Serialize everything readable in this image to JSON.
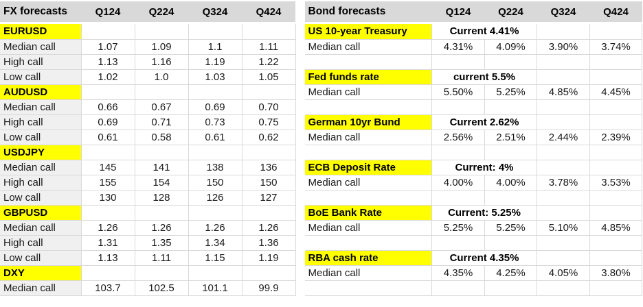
{
  "colors": {
    "highlight": "#ffff00",
    "header_bg": "#d9d9d9",
    "fx_label_bg": "#f0f0f0",
    "gridline": "#d9d9d9",
    "text": "#1a1a1a"
  },
  "fx_table": {
    "title": "FX forecasts",
    "quarters": [
      "Q124",
      "Q224",
      "Q324",
      "Q424"
    ],
    "sections": [
      {
        "name": "EURUSD",
        "rows": [
          {
            "label": "Median call",
            "values": [
              "1.07",
              "1.09",
              "1.1",
              "1.11"
            ]
          },
          {
            "label": "High call",
            "values": [
              "1.13",
              "1.16",
              "1.19",
              "1.22"
            ]
          },
          {
            "label": "Low call",
            "values": [
              "1.02",
              "1.0",
              "1.03",
              "1.05"
            ]
          }
        ]
      },
      {
        "name": "AUDUSD",
        "rows": [
          {
            "label": "Median call",
            "values": [
              "0.66",
              "0.67",
              "0.69",
              "0.70"
            ]
          },
          {
            "label": "High call",
            "values": [
              "0.69",
              "0.71",
              "0.73",
              "0.75"
            ]
          },
          {
            "label": "Low call",
            "values": [
              "0.61",
              "0.58",
              "0.61",
              "0.62"
            ]
          }
        ]
      },
      {
        "name": "USDJPY",
        "rows": [
          {
            "label": "Median call",
            "values": [
              "145",
              "141",
              "138",
              "136"
            ]
          },
          {
            "label": "High call",
            "values": [
              "155",
              "154",
              "150",
              "150"
            ]
          },
          {
            "label": "Low call",
            "values": [
              "130",
              "128",
              "126",
              "127"
            ]
          }
        ]
      },
      {
        "name": "GBPUSD",
        "rows": [
          {
            "label": "Median call",
            "values": [
              "1.26",
              "1.26",
              "1.26",
              "1.26"
            ]
          },
          {
            "label": "High call",
            "values": [
              "1.31",
              "1.35",
              "1.34",
              "1.36"
            ]
          },
          {
            "label": "Low call",
            "values": [
              "1.13",
              "1.11",
              "1.15",
              "1.19"
            ]
          }
        ]
      },
      {
        "name": "DXY",
        "rows": [
          {
            "label": "Median call",
            "values": [
              "103.7",
              "102.5",
              "101.1",
              "99.9"
            ]
          }
        ]
      }
    ]
  },
  "bond_table": {
    "title": "Bond forecasts",
    "quarters": [
      "Q124",
      "Q224",
      "Q324",
      "Q424"
    ],
    "sections": [
      {
        "name": "US 10-year Treasury",
        "current": "Current 4.41%",
        "median_label": "Median call",
        "values": [
          "4.31%",
          "4.09%",
          "3.90%",
          "3.74%"
        ]
      },
      {
        "name": "Fed funds rate",
        "current": "current 5.5%",
        "median_label": "Median call",
        "values": [
          "5.50%",
          "5.25%",
          "4.85%",
          "4.45%"
        ]
      },
      {
        "name": "German 10yr Bund",
        "current": "Current 2.62%",
        "median_label": "Median call",
        "values": [
          "2.56%",
          "2.51%",
          "2.44%",
          "2.39%"
        ]
      },
      {
        "name": "ECB Deposit Rate",
        "current": "Current: 4%",
        "median_label": "Median call",
        "values": [
          "4.00%",
          "4.00%",
          "3.78%",
          "3.53%"
        ]
      },
      {
        "name": "BoE Bank Rate",
        "current": "Current: 5.25%",
        "median_label": "Median call",
        "values": [
          "5.25%",
          "5.25%",
          "5.10%",
          "4.85%"
        ]
      },
      {
        "name": "RBA cash rate",
        "current": "Current 4.35%",
        "median_label": "Median call",
        "values": [
          "4.35%",
          "4.25%",
          "4.05%",
          "3.80%"
        ]
      }
    ]
  }
}
